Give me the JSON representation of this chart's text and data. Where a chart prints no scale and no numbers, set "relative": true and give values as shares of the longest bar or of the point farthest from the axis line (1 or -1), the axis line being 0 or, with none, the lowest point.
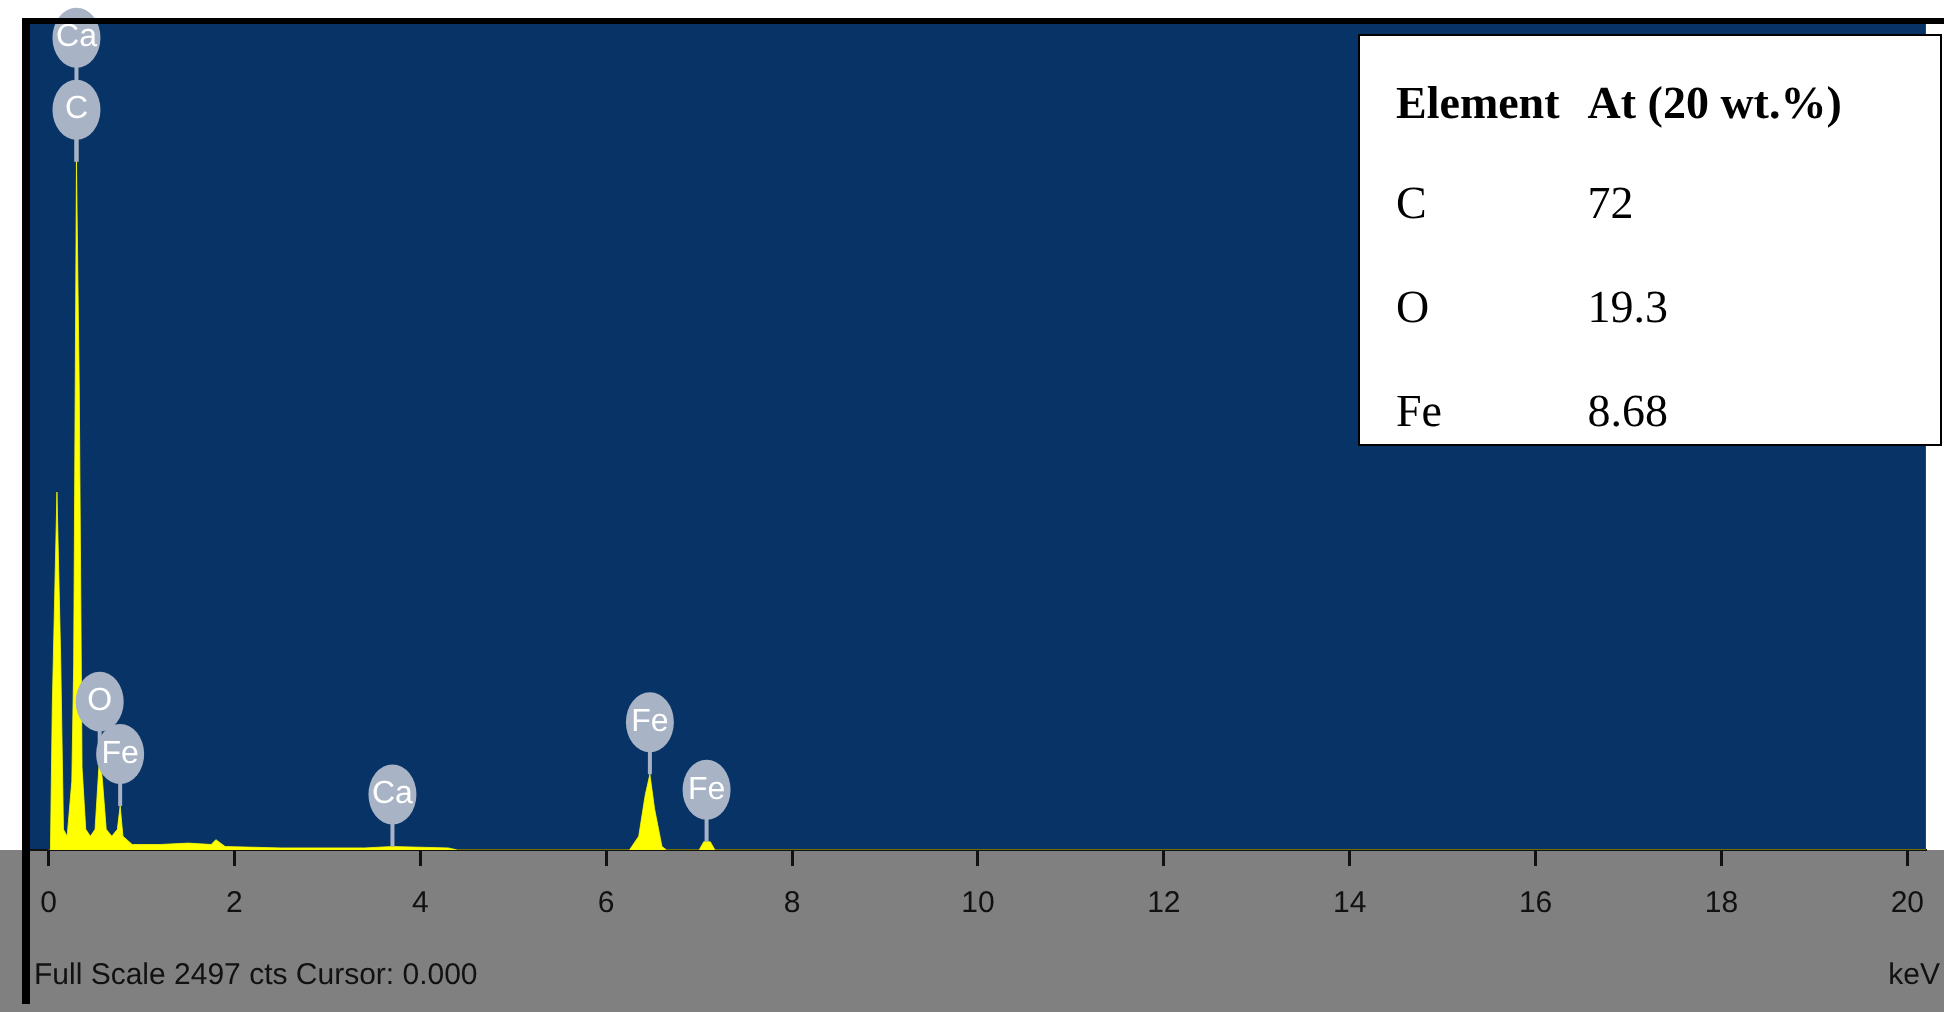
{
  "chart_data": [
    {
      "type": "area",
      "xlabel": "keV",
      "relative": true,
      "grid": false,
      "legend": false,
      "xlim": [
        -0.2,
        20.2
      ],
      "xticks": [
        0,
        2,
        4,
        6,
        8,
        10,
        12,
        14,
        16,
        18,
        20
      ],
      "x": [
        0,
        0.02,
        0.04,
        0.09,
        0.13,
        0.16,
        0.2,
        0.25,
        0.27,
        0.3,
        0.33,
        0.36,
        0.4,
        0.45,
        0.5,
        0.55,
        0.58,
        0.62,
        0.68,
        0.74,
        0.77,
        0.8,
        0.9,
        1.2,
        1.5,
        1.75,
        1.8,
        1.9,
        2.5,
        3.4,
        3.7,
        4.3,
        4.4,
        6.25,
        6.35,
        6.42,
        6.47,
        6.52,
        6.6,
        6.65,
        7.0,
        7.05,
        7.12,
        7.17,
        20.2
      ],
      "series": [
        {
          "color": "#ffff00",
          "values": [
            0,
            0,
            0.21,
            0.52,
            0.28,
            0.03,
            0.02,
            0.1,
            0.27,
            1,
            0.67,
            0.12,
            0.03,
            0.02,
            0.03,
            0.14,
            0.1,
            0.03,
            0.02,
            0.03,
            0.064,
            0.02,
            0.008,
            0.008,
            0.01,
            0.008,
            0.015,
            0.005,
            0.003,
            0.003,
            0.005,
            0.003,
            0,
            0,
            0.02,
            0.08,
            0.11,
            0.06,
            0.005,
            0,
            0,
            0.012,
            0.012,
            0,
            0
          ]
        }
      ],
      "annotations": [
        {
          "text": "Ca",
          "x": 0.3,
          "y": 1
        },
        {
          "text": "C",
          "x": 0.3,
          "y": 1
        },
        {
          "text": "O",
          "x": 0.55,
          "y": 0.14
        },
        {
          "text": "Fe",
          "x": 0.77,
          "y": 0.064
        },
        {
          "text": "Ca",
          "x": 3.7,
          "y": 0.005
        },
        {
          "text": "Fe",
          "x": 6.47,
          "y": 0.11
        },
        {
          "text": "Fe",
          "x": 7.08,
          "y": 0.012
        },
        "Full Scale 2497 cts Cursor: 0.000"
      ]
    },
    {
      "type": "other",
      "xlabel": "Element",
      "ylabel": "At (20 wt.%)",
      "categories": [
        "C",
        "O",
        "Fe"
      ],
      "values": [
        72,
        19.3,
        8.68
      ],
      "data_labels": true
    }
  ]
}
